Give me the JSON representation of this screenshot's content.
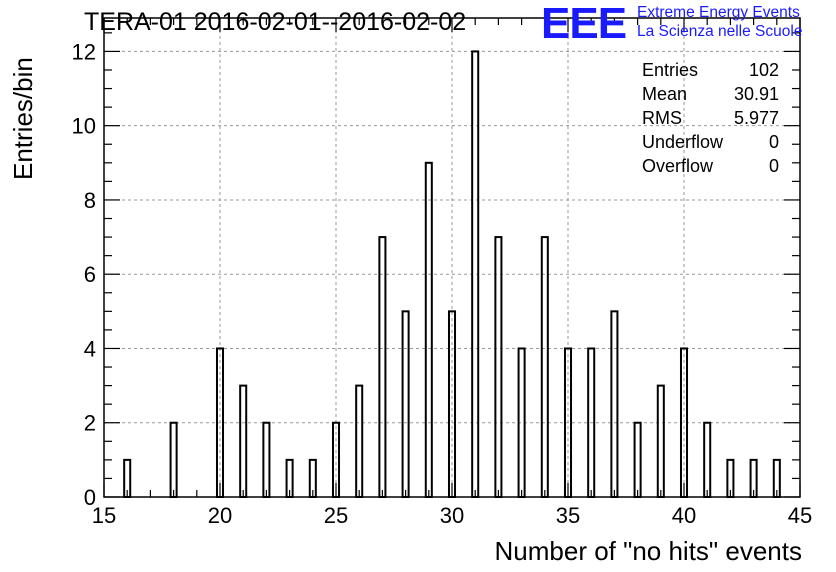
{
  "header": {
    "title": "TERA-01 2016-02-01--2016-02-02",
    "logo_mark": "EEE",
    "logo_line1": "Extreme Energy Events",
    "logo_line2": "La Scienza nelle Scuole"
  },
  "stats": {
    "rows": [
      {
        "label": "Entries",
        "value": "102"
      },
      {
        "label": "Mean",
        "value": "30.91"
      },
      {
        "label": "RMS",
        "value": "5.977"
      },
      {
        "label": "Underflow",
        "value": "0"
      },
      {
        "label": "Overflow",
        "value": "0"
      }
    ]
  },
  "colors": {
    "bar": "#000000",
    "grid": "#9a9a9a",
    "logo": "#1a1aff"
  },
  "chart_data": {
    "type": "bar",
    "xlabel": "Number of \"no hits\" events",
    "ylabel": "Entries/bin",
    "xlim": [
      15,
      45
    ],
    "ylim": [
      0,
      12.9
    ],
    "bin_width": 0.5,
    "grid": true,
    "x_ticks": [
      15,
      20,
      25,
      30,
      35,
      40,
      45
    ],
    "y_ticks": [
      0,
      2,
      4,
      6,
      8,
      10,
      12
    ],
    "bins": [
      {
        "x": 16,
        "value": 1
      },
      {
        "x": 18,
        "value": 2
      },
      {
        "x": 20,
        "value": 4
      },
      {
        "x": 21,
        "value": 3
      },
      {
        "x": 22,
        "value": 2
      },
      {
        "x": 23,
        "value": 1
      },
      {
        "x": 24,
        "value": 1
      },
      {
        "x": 25,
        "value": 2
      },
      {
        "x": 26,
        "value": 3
      },
      {
        "x": 27,
        "value": 7
      },
      {
        "x": 28,
        "value": 5
      },
      {
        "x": 29,
        "value": 9
      },
      {
        "x": 30,
        "value": 5
      },
      {
        "x": 31,
        "value": 12
      },
      {
        "x": 32,
        "value": 7
      },
      {
        "x": 33,
        "value": 4
      },
      {
        "x": 34,
        "value": 7
      },
      {
        "x": 35,
        "value": 4
      },
      {
        "x": 36,
        "value": 4
      },
      {
        "x": 37,
        "value": 5
      },
      {
        "x": 38,
        "value": 2
      },
      {
        "x": 39,
        "value": 3
      },
      {
        "x": 40,
        "value": 4
      },
      {
        "x": 41,
        "value": 2
      },
      {
        "x": 42,
        "value": 1
      },
      {
        "x": 43,
        "value": 1
      },
      {
        "x": 44,
        "value": 1
      }
    ]
  }
}
